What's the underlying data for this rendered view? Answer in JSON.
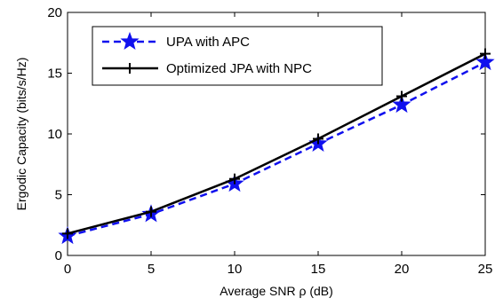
{
  "chart_data": {
    "type": "line",
    "title": "",
    "xlabel": "Average SNR ρ (dB)",
    "ylabel": "Ergodic Capacity (bits/s/Hz)",
    "xlim": [
      0,
      25
    ],
    "ylim": [
      0,
      20
    ],
    "xticks": [
      0,
      5,
      10,
      15,
      20,
      25
    ],
    "yticks": [
      0,
      5,
      10,
      15,
      20
    ],
    "grid": false,
    "legend_position": "top-left",
    "x": [
      0,
      5,
      10,
      15,
      20,
      25
    ],
    "series": [
      {
        "name": "UPA with APC",
        "values": [
          1.6,
          3.4,
          5.9,
          9.2,
          12.4,
          15.9
        ],
        "color": "#1010ee",
        "line_style": "dashed",
        "marker": "star"
      },
      {
        "name": "Optimized JPA with NPC",
        "values": [
          1.8,
          3.6,
          6.3,
          9.6,
          13.1,
          16.6
        ],
        "color": "#000000",
        "line_style": "solid",
        "marker": "plus"
      }
    ]
  }
}
